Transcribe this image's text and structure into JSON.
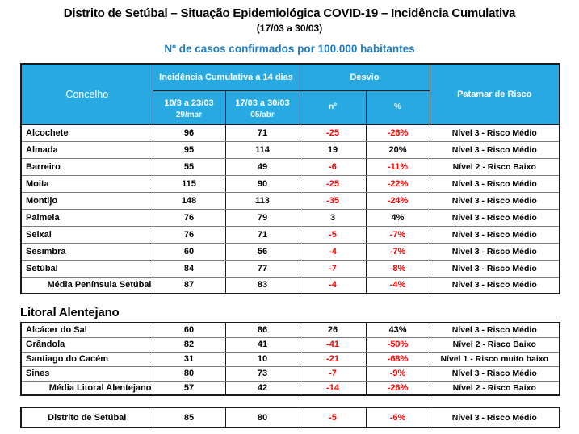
{
  "page": {
    "title": "Distrito de Setúbal – Situação Epidemiológica COVID-19 – Incidência Cumulativa",
    "subtitle": "(17/03 a 30/03)",
    "tagline": "Nº de casos confirmados por 100.000 habitantes"
  },
  "colors": {
    "header_bg": "#29A9E2",
    "tagline_blue": "#1E7CC4",
    "negative_red": "#FF0000"
  },
  "table_header": {
    "concelho": "Concelho",
    "incidencia_group": "Incidência Cumulativa a 14 dias",
    "period1": "10/3 a 23/03",
    "period1_sub": "29/mar",
    "period2": "17/03 a 30/03",
    "period2_sub": "05/abr",
    "desvio_group": "Desvio",
    "desvio_n": "nº",
    "desvio_pct": "%",
    "patamar": "Patamar de Risco"
  },
  "peninsula_table": {
    "rows": [
      {
        "concelho": "Alcochete",
        "v1": "96",
        "v2": "71",
        "n": "-25",
        "pct": "-26%",
        "patamar": "Nível 3 - Risco Médio"
      },
      {
        "concelho": "Almada",
        "v1": "95",
        "v2": "114",
        "n": "19",
        "pct": "20%",
        "patamar": "Nível 3 - Risco Médio"
      },
      {
        "concelho": "Barreiro",
        "v1": "55",
        "v2": "49",
        "n": "-6",
        "pct": "-11%",
        "patamar": "Nível 2 - Risco Baixo"
      },
      {
        "concelho": "Moita",
        "v1": "115",
        "v2": "90",
        "n": "-25",
        "pct": "-22%",
        "patamar": "Nível 3 - Risco Médio"
      },
      {
        "concelho": "Montijo",
        "v1": "148",
        "v2": "113",
        "n": "-35",
        "pct": "-24%",
        "patamar": "Nível 3 - Risco Médio"
      },
      {
        "concelho": "Palmela",
        "v1": "76",
        "v2": "79",
        "n": "3",
        "pct": "4%",
        "patamar": "Nível 3 - Risco Médio"
      },
      {
        "concelho": "Seixal",
        "v1": "76",
        "v2": "71",
        "n": "-5",
        "pct": "-7%",
        "patamar": "Nível 3 - Risco Médio"
      },
      {
        "concelho": "Sesimbra",
        "v1": "60",
        "v2": "56",
        "n": "-4",
        "pct": "-7%",
        "patamar": "Nível 3 - Risco Médio"
      },
      {
        "concelho": "Setúbal",
        "v1": "84",
        "v2": "77",
        "n": "-7",
        "pct": "-8%",
        "patamar": "Nível 3 - Risco Médio"
      },
      {
        "concelho": "Média Península Setúbal",
        "v1": "87",
        "v2": "83",
        "n": "-4",
        "pct": "-4%",
        "patamar": "Nível 3 - Risco Médio",
        "align": "right"
      }
    ]
  },
  "litoral_section": {
    "heading": "Litoral Alentejano",
    "rows": [
      {
        "concelho": "Alcácer do Sal",
        "v1": "60",
        "v2": "86",
        "n": "26",
        "pct": "43%",
        "patamar": "Nível 3 - Risco Médio"
      },
      {
        "concelho": "Grândola",
        "v1": "82",
        "v2": "41",
        "n": "-41",
        "pct": "-50%",
        "patamar": "Nível 2 - Risco Baixo"
      },
      {
        "concelho": "Santiago do Cacém",
        "v1": "31",
        "v2": "10",
        "n": "-21",
        "pct": "-68%",
        "patamar": "Nível 1 - Risco muito baixo"
      },
      {
        "concelho": "Sines",
        "v1": "80",
        "v2": "73",
        "n": "-7",
        "pct": "-9%",
        "patamar": "Nível 3 - Risco Médio"
      },
      {
        "concelho": "Média Litoral Alentejano",
        "v1": "57",
        "v2": "42",
        "n": "-14",
        "pct": "-26%",
        "patamar": "Nível 2 - Risco Baixo",
        "align": "right"
      }
    ]
  },
  "distrito_table": {
    "rows": [
      {
        "concelho": "Distrito de Setúbal",
        "v1": "85",
        "v2": "80",
        "n": "-5",
        "pct": "-6%",
        "patamar": "Nível 3 - Risco Médio",
        "align": "center"
      }
    ]
  }
}
